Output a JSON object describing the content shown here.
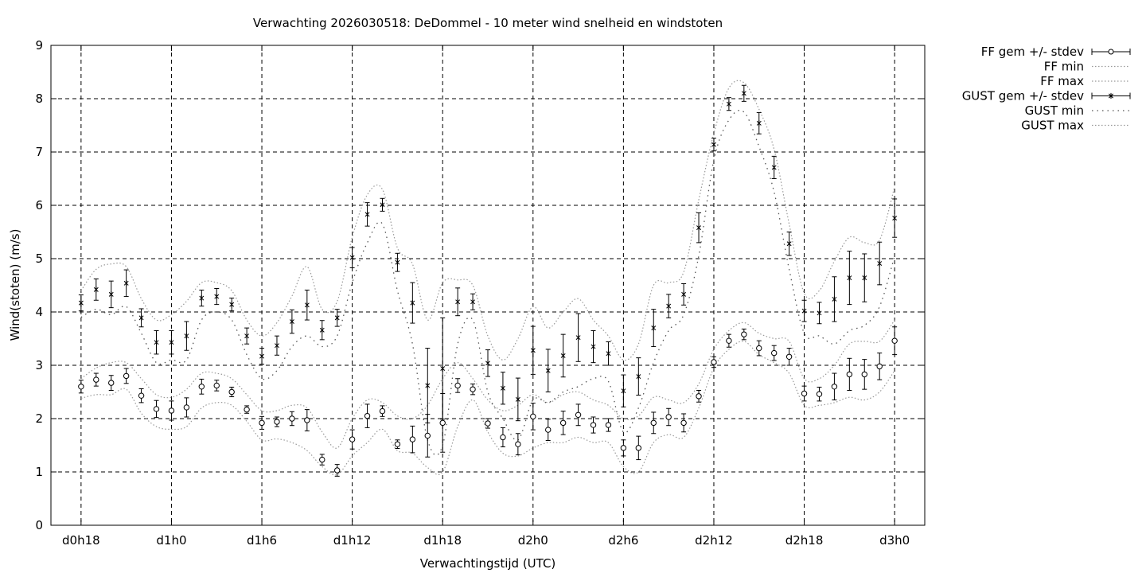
{
  "chart_data": {
    "type": "line",
    "title": "Verwachting 2026030518: DeDommel - 10 meter wind snelheid en windstoten",
    "xlabel": "Verwachtingstijd (UTC)",
    "ylabel": "Wind(stoten) (m/s)",
    "ylim": [
      0,
      9
    ],
    "xlim": [
      -2,
      56
    ],
    "grid": true,
    "legend_position": "outside-top-right",
    "yticks": [
      0,
      1,
      2,
      3,
      4,
      5,
      6,
      7,
      8,
      9
    ],
    "xticks": [
      {
        "x": 0,
        "label": "d0h18"
      },
      {
        "x": 6,
        "label": "d1h0"
      },
      {
        "x": 12,
        "label": "d1h6"
      },
      {
        "x": 18,
        "label": "d1h12"
      },
      {
        "x": 24,
        "label": "d1h18"
      },
      {
        "x": 30,
        "label": "d2h0"
      },
      {
        "x": 36,
        "label": "d2h6"
      },
      {
        "x": 42,
        "label": "d2h12"
      },
      {
        "x": 48,
        "label": "d2h18"
      },
      {
        "x": 54,
        "label": "d3h0"
      }
    ],
    "legend": [
      "FF gem +/- stdev",
      "FF min",
      "FF max",
      "GUST gem +/- stdev",
      "GUST min",
      "GUST max"
    ],
    "ff_mean": [
      2.6,
      2.73,
      2.67,
      2.8,
      2.43,
      2.18,
      2.15,
      2.21,
      2.6,
      2.62,
      2.5,
      2.17,
      1.92,
      1.94,
      2.0,
      1.97,
      1.23,
      1.03,
      1.61,
      2.05,
      2.14,
      1.52,
      1.61,
      1.68,
      1.92,
      2.62,
      2.55,
      1.91,
      1.65,
      1.52,
      2.04,
      1.79,
      1.92,
      2.07,
      1.88,
      1.88,
      1.45,
      1.45,
      1.92,
      2.03,
      1.92,
      2.42,
      3.06,
      3.46,
      3.58,
      3.32,
      3.23,
      3.16,
      2.47,
      2.46,
      2.6,
      2.83,
      2.83,
      2.98,
      3.46
    ],
    "ff_stdev": [
      0.12,
      0.12,
      0.14,
      0.14,
      0.13,
      0.16,
      0.18,
      0.18,
      0.14,
      0.1,
      0.09,
      0.07,
      0.12,
      0.09,
      0.13,
      0.2,
      0.1,
      0.11,
      0.18,
      0.22,
      0.1,
      0.08,
      0.25,
      0.4,
      0.55,
      0.13,
      0.1,
      0.09,
      0.18,
      0.2,
      0.25,
      0.2,
      0.22,
      0.2,
      0.15,
      0.12,
      0.15,
      0.22,
      0.2,
      0.16,
      0.17,
      0.11,
      0.1,
      0.12,
      0.1,
      0.14,
      0.14,
      0.16,
      0.14,
      0.13,
      0.25,
      0.3,
      0.28,
      0.25,
      0.26
    ],
    "ff_min": [
      2.38,
      2.45,
      2.45,
      2.55,
      2.1,
      1.85,
      1.8,
      1.85,
      2.2,
      2.3,
      2.25,
      1.95,
      1.6,
      1.62,
      1.55,
      1.4,
      1.1,
      0.95,
      1.3,
      1.55,
      1.8,
      1.4,
      1.35,
      1.08,
      1.0,
      1.85,
      2.35,
      1.75,
      1.35,
      1.3,
      1.45,
      1.55,
      1.55,
      1.65,
      1.55,
      1.55,
      1.1,
      1.0,
      1.55,
      1.7,
      1.65,
      2.2,
      2.95,
      3.3,
      3.45,
      3.2,
      3.05,
      2.85,
      2.25,
      2.25,
      2.3,
      2.4,
      2.35,
      2.5,
      2.9
    ],
    "ff_max": [
      2.75,
      2.95,
      3.05,
      3.05,
      2.75,
      2.45,
      2.4,
      2.55,
      2.85,
      2.85,
      2.75,
      2.45,
      2.15,
      2.15,
      2.25,
      2.2,
      1.75,
      1.45,
      2.0,
      2.35,
      2.3,
      2.05,
      2.0,
      2.25,
      2.75,
      3.05,
      2.75,
      2.35,
      2.15,
      2.25,
      2.45,
      2.3,
      2.45,
      2.5,
      2.35,
      2.25,
      2.0,
      2.05,
      2.4,
      2.35,
      2.3,
      2.65,
      3.3,
      3.65,
      3.8,
      3.6,
      3.5,
      3.45,
      2.75,
      2.75,
      3.0,
      3.4,
      3.45,
      3.45,
      3.85
    ],
    "gust_mean": [
      4.17,
      4.42,
      4.33,
      4.54,
      3.89,
      3.43,
      3.43,
      3.55,
      4.26,
      4.29,
      4.14,
      3.55,
      3.17,
      3.37,
      3.82,
      4.13,
      3.66,
      3.89,
      5.02,
      5.83,
      6.01,
      4.93,
      4.17,
      2.62,
      2.94,
      4.19,
      4.19,
      3.04,
      2.57,
      2.36,
      3.28,
      2.9,
      3.18,
      3.52,
      3.35,
      3.22,
      2.52,
      2.79,
      3.7,
      4.11,
      4.33,
      5.58,
      7.14,
      7.9,
      8.1,
      7.54,
      6.71,
      5.28,
      4.02,
      3.98,
      4.24,
      4.64,
      4.64,
      4.91,
      5.76
    ],
    "gust_stdev": [
      0.15,
      0.2,
      0.25,
      0.25,
      0.17,
      0.22,
      0.22,
      0.27,
      0.15,
      0.15,
      0.12,
      0.15,
      0.15,
      0.18,
      0.22,
      0.28,
      0.18,
      0.16,
      0.19,
      0.22,
      0.12,
      0.17,
      0.38,
      0.7,
      0.95,
      0.26,
      0.15,
      0.25,
      0.3,
      0.4,
      0.45,
      0.4,
      0.4,
      0.45,
      0.3,
      0.22,
      0.3,
      0.35,
      0.35,
      0.22,
      0.2,
      0.28,
      0.12,
      0.12,
      0.15,
      0.2,
      0.21,
      0.22,
      0.2,
      0.2,
      0.42,
      0.5,
      0.45,
      0.4,
      0.36
    ],
    "gust_min": [
      3.9,
      4.05,
      3.95,
      4.1,
      3.6,
      3.05,
      3.1,
      3.1,
      3.85,
      4.0,
      3.85,
      3.2,
      2.75,
      2.9,
      3.35,
      3.55,
      3.35,
      3.55,
      4.55,
      5.3,
      5.65,
      4.4,
      3.4,
      1.6,
      1.5,
      3.4,
      3.85,
      2.5,
      2.0,
      1.6,
      2.35,
      2.3,
      2.5,
      2.6,
      2.75,
      2.7,
      1.75,
      2.2,
      3.05,
      3.65,
      3.95,
      5.05,
      6.85,
      7.6,
      7.75,
      7.1,
      6.25,
      4.8,
      3.6,
      3.55,
      3.4,
      3.65,
      3.75,
      4.1,
      5.05
    ],
    "gust_max": [
      4.4,
      4.8,
      4.9,
      4.85,
      4.25,
      3.85,
      3.95,
      4.2,
      4.55,
      4.55,
      4.4,
      3.85,
      3.55,
      3.8,
      4.3,
      4.85,
      4.05,
      4.2,
      5.4,
      6.2,
      6.3,
      5.2,
      4.9,
      3.85,
      4.55,
      4.6,
      4.5,
      3.55,
      3.1,
      3.5,
      4.1,
      3.7,
      4.0,
      4.25,
      3.85,
      3.55,
      3.1,
      3.4,
      4.5,
      4.55,
      4.75,
      6.1,
      7.35,
      8.2,
      8.3,
      7.8,
      7.05,
      5.65,
      4.35,
      4.4,
      4.95,
      5.4,
      5.3,
      5.35,
      6.35
    ]
  }
}
